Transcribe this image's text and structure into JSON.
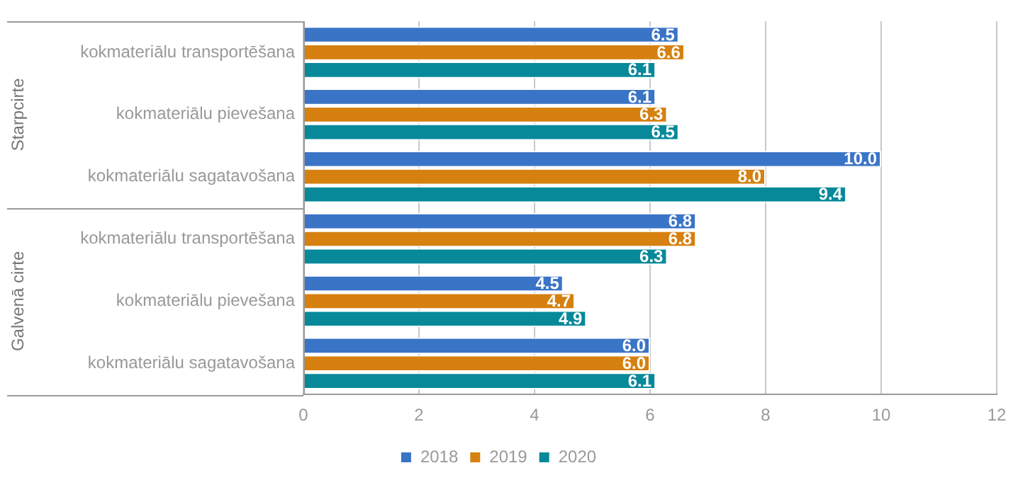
{
  "chart_data": {
    "type": "bar",
    "orientation": "horizontal",
    "categories": [
      "kokmateriālu transportēšana",
      "kokmateriālu pievešana",
      "kokmateriālu sagatavošana",
      "kokmateriālu transportēšana",
      "kokmateriālu pievešana",
      "kokmateriālu sagatavošana"
    ],
    "series": [
      {
        "name": "2018",
        "color": "#3a74c6",
        "values": [
          6.5,
          6.1,
          10.0,
          6.8,
          4.5,
          6.0
        ],
        "value_labels": [
          "6.5",
          "6.1",
          "10.0",
          "6.8",
          "4.5",
          "6.0"
        ]
      },
      {
        "name": "2019",
        "color": "#d6800f",
        "values": [
          6.6,
          6.3,
          8.0,
          6.8,
          4.7,
          6.0
        ],
        "value_labels": [
          "6.6",
          "6.3",
          "8.0",
          "6.8",
          "4.7",
          "6.0"
        ]
      },
      {
        "name": "2020",
        "color": "#07899a",
        "values": [
          6.1,
          6.5,
          9.4,
          6.3,
          4.9,
          6.1
        ],
        "value_labels": [
          "6.1",
          "6.5",
          "9.4",
          "6.3",
          "4.9",
          "6.1"
        ]
      }
    ],
    "annotations": [
      "Starpcirte",
      "Galvenā cirte"
    ],
    "xlim": [
      0,
      12
    ],
    "xticks": [
      0,
      2,
      4,
      6,
      8,
      10,
      12
    ],
    "grid": "x",
    "legend": "bottom"
  }
}
